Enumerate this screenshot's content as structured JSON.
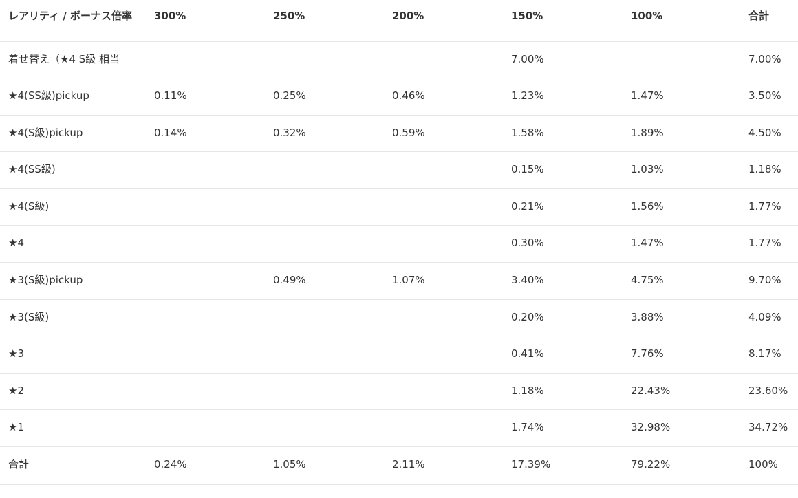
{
  "table": {
    "headers": [
      "レアリティ / ボーナス倍率",
      "300%",
      "250%",
      "200%",
      "150%",
      "100%",
      "合計"
    ],
    "rows": [
      [
        "着せ替え（★4 S級 相当",
        "",
        "",
        "",
        "7.00%",
        "",
        "7.00%"
      ],
      [
        "★4(SS級)pickup",
        "0.11%",
        "0.25%",
        "0.46%",
        "1.23%",
        "1.47%",
        "3.50%"
      ],
      [
        "★4(S級)pickup",
        "0.14%",
        "0.32%",
        "0.59%",
        "1.58%",
        "1.89%",
        "4.50%"
      ],
      [
        "★4(SS級)",
        "",
        "",
        "",
        "0.15%",
        "1.03%",
        "1.18%"
      ],
      [
        "★4(S級)",
        "",
        "",
        "",
        "0.21%",
        "1.56%",
        "1.77%"
      ],
      [
        "★4",
        "",
        "",
        "",
        "0.30%",
        "1.47%",
        "1.77%"
      ],
      [
        "★3(S級)pickup",
        "",
        "0.49%",
        "1.07%",
        "3.40%",
        "4.75%",
        "9.70%"
      ],
      [
        "★3(S級)",
        "",
        "",
        "",
        "0.20%",
        "3.88%",
        "4.09%"
      ],
      [
        "★3",
        "",
        "",
        "",
        "0.41%",
        "7.76%",
        "8.17%"
      ],
      [
        "★2",
        "",
        "",
        "",
        "1.18%",
        "22.43%",
        "23.60%"
      ],
      [
        "★1",
        "",
        "",
        "",
        "1.74%",
        "32.98%",
        "34.72%"
      ],
      [
        "合計",
        "0.24%",
        "1.05%",
        "2.11%",
        "17.39%",
        "79.22%",
        "100%"
      ]
    ]
  }
}
